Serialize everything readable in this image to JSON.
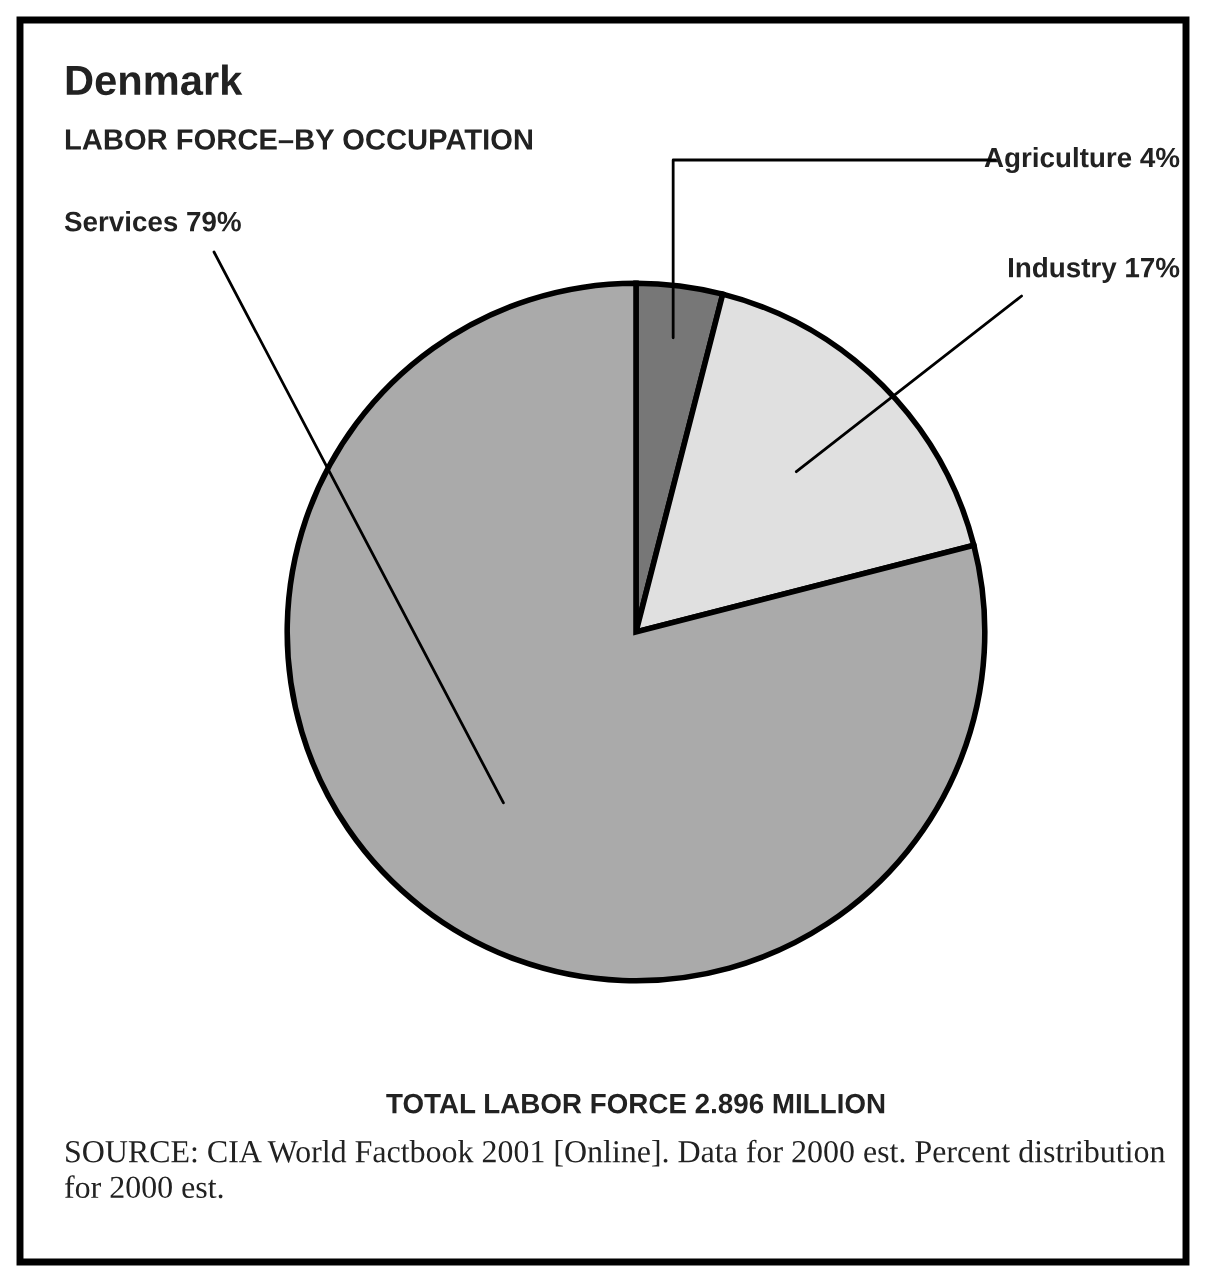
{
  "chart_data": {
    "type": "pie",
    "title": "Denmark",
    "subtitle": "LABOR FORCE–BY OCCUPATION",
    "categories": [
      "Agriculture 4%",
      "Industry 17%",
      "Services 79%"
    ],
    "values": [
      4,
      17,
      79
    ],
    "colors": [
      "#777777",
      "#e0e0e0",
      "#aaaaaa"
    ],
    "annotations": [
      "TOTAL LABOR FORCE 2.896 MILLION",
      "SOURCE: CIA World Factbook 2001 [Online]. Data for 2000 est. Percent distribution for 2000 est."
    ]
  }
}
